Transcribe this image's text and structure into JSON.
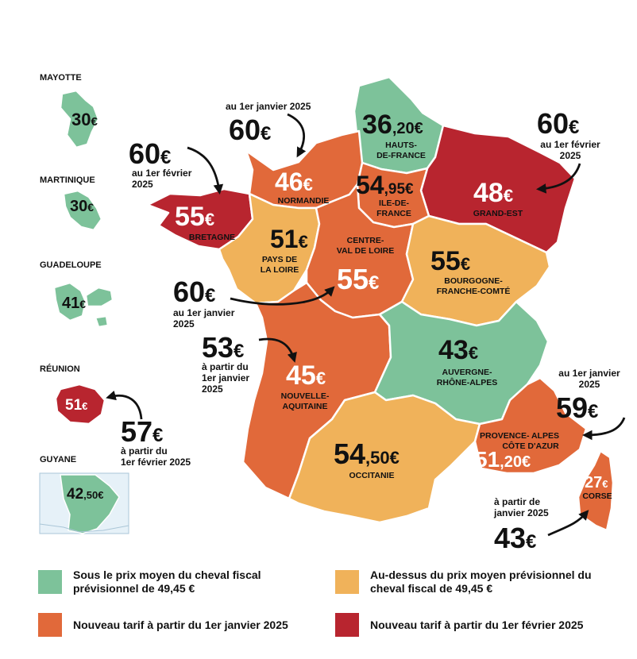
{
  "colors": {
    "below_average": "#7dc29a",
    "above_average": "#f0b25a",
    "new_jan_2025": "#e1693a",
    "new_feb_2025": "#b8252f"
  },
  "regions": {
    "hauts_de_france": {
      "price_main": "36",
      "price_dec": ",20€",
      "name1": "HAUTS-",
      "name2": "DE-FRANCE"
    },
    "normandie": {
      "price_main": "46",
      "price_dec": "€",
      "name1": "NORMANDIE"
    },
    "ile_de_france": {
      "price_main": "54",
      "price_dec": ",95€",
      "name1": "ILE-DE-",
      "name2": "FRANCE"
    },
    "grand_est": {
      "price_main": "48",
      "price_dec": "€",
      "name1": "GRAND-EST"
    },
    "bretagne": {
      "price_main": "55",
      "price_dec": "€",
      "name1": "BRETAGNE"
    },
    "pays_de_la_loire": {
      "price_main": "51",
      "price_dec": "€",
      "name1": "PAYS DE",
      "name2": "LA LOIRE"
    },
    "centre_val_de_loire": {
      "price_main": "55",
      "price_dec": "€",
      "name1": "CENTRE-",
      "name2": "VAL DE LOIRE"
    },
    "bourgogne_franche_comte": {
      "price_main": "55",
      "price_dec": "€",
      "name1": "BOURGOGNE-",
      "name2": "FRANCHE-COMTÉ"
    },
    "auvergne_rhone_alpes": {
      "price_main": "43",
      "price_dec": "€",
      "name1": "AUVERGNE-",
      "name2": "RHÔNE-ALPES"
    },
    "nouvelle_aquitaine": {
      "price_main": "45",
      "price_dec": "€",
      "name1": "NOUVELLE-",
      "name2": "AQUITAINE"
    },
    "occitanie": {
      "price_main": "54",
      "price_dec": ",50€",
      "name1": "OCCITANIE"
    },
    "paca": {
      "price_main": "51",
      "price_dec": ",20€",
      "name1": "PROVENCE- ALPES",
      "name2": "CÔTE D'AZUR"
    },
    "corse": {
      "price_main": "27",
      "price_dec": "€",
      "name1": "CORSE"
    }
  },
  "overseas": {
    "mayotte": {
      "name": "MAYOTTE",
      "price_main": "30",
      "price_dec": "€"
    },
    "martinique": {
      "name": "MARTINIQUE",
      "price_main": "30",
      "price_dec": "€"
    },
    "guadeloupe": {
      "name": "GUADELOUPE",
      "price_main": "41",
      "price_dec": "€"
    },
    "reunion": {
      "name": "RÉUNION",
      "price_main": "51",
      "price_dec": "€"
    },
    "guyane": {
      "name": "GUYANE",
      "price_main": "42",
      "price_dec": ",50€"
    }
  },
  "callouts": {
    "normandie": {
      "note1": "au 1er janvier 2025",
      "price_main": "60",
      "price_dec": "€"
    },
    "bretagne": {
      "price_main": "60",
      "price_dec": "€",
      "note1": "au 1er février",
      "note2": "2025"
    },
    "grand_est": {
      "price_main": "60",
      "price_dec": "€",
      "note1": "au 1er février",
      "note2": "2025"
    },
    "centre": {
      "price_main": "60",
      "price_dec": "€",
      "note1": "au 1er janvier",
      "note2": "2025"
    },
    "nouvelle_aquitaine": {
      "price_main": "53",
      "price_dec": "€",
      "note1": "à partir du",
      "note2": "1er janvier",
      "note3": "2025"
    },
    "paca": {
      "note1": "au 1er janvier",
      "note2": "2025",
      "price_main": "59",
      "price_dec": "€"
    },
    "corse": {
      "note1": "à partir de",
      "note2": "janvier 2025",
      "price_main": "43",
      "price_dec": "€"
    },
    "reunion": {
      "price_main": "57",
      "price_dec": "€",
      "note1": "à partir du",
      "note2": "1er février 2025"
    }
  },
  "legend": {
    "below": "Sous le prix moyen du cheval fiscal prévisionnel de 49,45 €",
    "above": "Au-dessus du prix moyen prévisionnel du cheval fiscal de 49,45 €",
    "jan": "Nouveau tarif à partir du 1er janvier 2025",
    "feb": "Nouveau tarif à partir du 1er février 2025"
  }
}
